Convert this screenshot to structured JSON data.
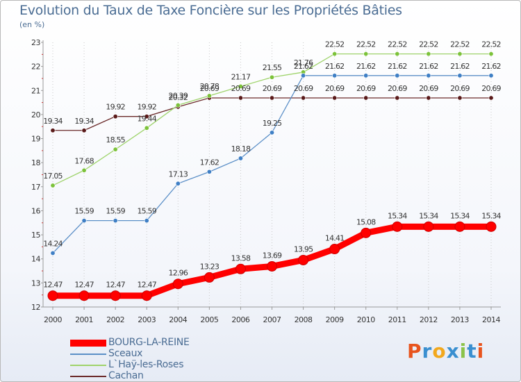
{
  "header": {
    "title": "Evolution du Taux de Taxe Foncière sur les Propriétés Bâties",
    "unit": "(en %)"
  },
  "chart_data": {
    "type": "line",
    "title": "Evolution du Taux de Taxe Foncière sur les Propriétés Bâties",
    "ylabel": "(en %)",
    "xlabel": "",
    "x": [
      "2000",
      "2001",
      "2002",
      "2003",
      "2004",
      "2005",
      "2006",
      "2007",
      "2008",
      "2009",
      "2010",
      "2011",
      "2012",
      "2013",
      "2014"
    ],
    "ylim": [
      12,
      23
    ],
    "yticks": [
      "12",
      "13",
      "14",
      "15",
      "16",
      "17",
      "18",
      "19",
      "20",
      "21",
      "22",
      "23"
    ],
    "grid": "vertical dotted",
    "legend_position": "bottom-left",
    "series": [
      {
        "name": "BOURG-LA-REINE",
        "color": "#ff0000",
        "emphasis": true,
        "values": [
          12.47,
          12.47,
          12.47,
          12.47,
          12.96,
          13.23,
          13.58,
          13.69,
          13.95,
          14.41,
          15.08,
          15.34,
          15.34,
          15.34,
          15.34
        ],
        "labels": [
          "12.47",
          "12.47",
          "12.47",
          "12.47",
          "12.96",
          "13.23",
          "13.58",
          "13.69",
          "13.95",
          "14.41",
          "15.08",
          "15.34",
          "15.34",
          "15.34",
          "15.34"
        ]
      },
      {
        "name": "Sceaux",
        "color": "#5b8fc7",
        "marker": "#3f7fc5",
        "values": [
          14.24,
          15.59,
          15.59,
          15.59,
          17.13,
          17.62,
          18.18,
          19.25,
          21.62,
          21.62,
          21.62,
          21.62,
          21.62,
          21.62,
          21.62
        ],
        "labels": [
          "14.24",
          "15.59",
          "15.59",
          "15.59",
          "17.13",
          "17.62",
          "18.18",
          "19.25",
          "21.62",
          "21.62",
          "21.62",
          "21.62",
          "21.62",
          "21.62",
          "21.62"
        ]
      },
      {
        "name": "L`Haÿ-les-Roses",
        "color": "#9ed36a",
        "marker": "#7cc23a",
        "values": [
          17.05,
          17.68,
          18.55,
          19.44,
          20.39,
          20.78,
          21.17,
          21.55,
          21.76,
          22.52,
          22.52,
          22.52,
          22.52,
          22.52,
          22.52
        ],
        "labels": [
          "17.05",
          "17.68",
          "18.55",
          "19.44",
          "20.39",
          "20.78",
          "21.17",
          "21.55",
          "21.76",
          "22.52",
          "22.52",
          "22.52",
          "22.52",
          "22.52",
          "22.52"
        ]
      },
      {
        "name": "Cachan",
        "color": "#6b2a2a",
        "marker": "#5a1a1a",
        "values": [
          19.34,
          19.34,
          19.92,
          19.92,
          20.32,
          20.69,
          20.69,
          20.69,
          20.69,
          20.69,
          20.69,
          20.69,
          20.69,
          20.69,
          20.69
        ],
        "labels": [
          "19.34",
          "19.34",
          "19.92",
          "19.92",
          "20.32",
          "20.69",
          "20.69",
          "20.69",
          "20.69",
          "20.69",
          "20.69",
          "20.69",
          "20.69",
          "20.69",
          "20.69"
        ]
      }
    ]
  },
  "legend": {
    "items": [
      {
        "label": "BOURG-LA-REINE",
        "color": "#ff0000"
      },
      {
        "label": "Sceaux",
        "color": "#5b8fc7"
      },
      {
        "label": "L`Haÿ-les-Roses",
        "color": "#9ed36a"
      },
      {
        "label": "Cachan",
        "color": "#6b2a2a"
      }
    ]
  },
  "brand": {
    "text": "Proxiti",
    "letters": [
      "P",
      "r",
      "o",
      "x",
      "i",
      "t",
      "i"
    ],
    "colors": [
      "#e8541e",
      "#3a8fd0",
      "#f2a81d",
      "#3a8fd0",
      "#8bc34a",
      "#3a8fd0",
      "#e8541e"
    ]
  }
}
